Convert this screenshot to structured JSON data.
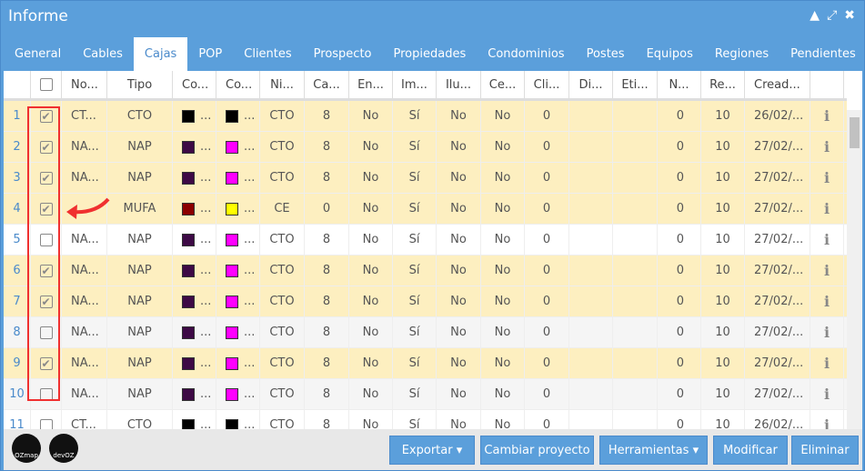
{
  "window": {
    "title": "Informe"
  },
  "tabs": [
    "General",
    "Cables",
    "Cajas",
    "POP",
    "Clientes",
    "Prospecto",
    "Propiedades",
    "Condominios",
    "Postes",
    "Equipos",
    "Regiones",
    "Pendientes"
  ],
  "active_tab": "Cajas",
  "columns": [
    "No...",
    "Tipo",
    "Co...",
    "Co...",
    "Ni...",
    "Ca...",
    "En...",
    "Im...",
    "Ilu...",
    "Ce...",
    "Cli...",
    "Di...",
    "Eti...",
    "N...",
    "Re...",
    "Cread..."
  ],
  "rows": [
    {
      "n": "1",
      "checked": true,
      "name": "CT...",
      "tipo": "CTO",
      "c1": "#000000",
      "c2": "#000000",
      "ni": "CTO",
      "ca": "8",
      "en": "No",
      "im": "Sí",
      "ilu": "No",
      "ce": "No",
      "cli": "0",
      "di": "",
      "eti": "",
      "num": "0",
      "re": "10",
      "cread": "26/02/..."
    },
    {
      "n": "2",
      "checked": true,
      "name": "NA...",
      "tipo": "NAP",
      "c1": "#3d0a45",
      "c2": "#ff00ff",
      "ni": "CTO",
      "ca": "8",
      "en": "No",
      "im": "Sí",
      "ilu": "No",
      "ce": "No",
      "cli": "0",
      "di": "",
      "eti": "",
      "num": "0",
      "re": "10",
      "cread": "27/02/..."
    },
    {
      "n": "3",
      "checked": true,
      "name": "NA...",
      "tipo": "NAP",
      "c1": "#3d0a45",
      "c2": "#ff00ff",
      "ni": "CTO",
      "ca": "8",
      "en": "No",
      "im": "Sí",
      "ilu": "No",
      "ce": "No",
      "cli": "0",
      "di": "",
      "eti": "",
      "num": "0",
      "re": "10",
      "cread": "27/02/..."
    },
    {
      "n": "4",
      "checked": true,
      "name": "",
      "tipo": "MUFA",
      "c1": "#8b0000",
      "c2": "#ffff00",
      "ni": "CE",
      "ca": "0",
      "en": "No",
      "im": "Sí",
      "ilu": "No",
      "ce": "No",
      "cli": "0",
      "di": "",
      "eti": "",
      "num": "0",
      "re": "10",
      "cread": "27/02/..."
    },
    {
      "n": "5",
      "checked": false,
      "name": "NA...",
      "tipo": "NAP",
      "c1": "#3d0a45",
      "c2": "#ff00ff",
      "ni": "CTO",
      "ca": "8",
      "en": "No",
      "im": "Sí",
      "ilu": "No",
      "ce": "No",
      "cli": "0",
      "di": "",
      "eti": "",
      "num": "0",
      "re": "10",
      "cread": "27/02/..."
    },
    {
      "n": "6",
      "checked": true,
      "name": "NA...",
      "tipo": "NAP",
      "c1": "#3d0a45",
      "c2": "#ff00ff",
      "ni": "CTO",
      "ca": "8",
      "en": "No",
      "im": "Sí",
      "ilu": "No",
      "ce": "No",
      "cli": "0",
      "di": "",
      "eti": "",
      "num": "0",
      "re": "10",
      "cread": "27/02/..."
    },
    {
      "n": "7",
      "checked": true,
      "name": "NA...",
      "tipo": "NAP",
      "c1": "#3d0a45",
      "c2": "#ff00ff",
      "ni": "CTO",
      "ca": "8",
      "en": "No",
      "im": "Sí",
      "ilu": "No",
      "ce": "No",
      "cli": "0",
      "di": "",
      "eti": "",
      "num": "0",
      "re": "10",
      "cread": "27/02/..."
    },
    {
      "n": "8",
      "checked": false,
      "name": "NA...",
      "tipo": "NAP",
      "c1": "#3d0a45",
      "c2": "#ff00ff",
      "ni": "CTO",
      "ca": "8",
      "en": "No",
      "im": "Sí",
      "ilu": "No",
      "ce": "No",
      "cli": "0",
      "di": "",
      "eti": "",
      "num": "0",
      "re": "10",
      "cread": "27/02/..."
    },
    {
      "n": "9",
      "checked": true,
      "name": "NA...",
      "tipo": "NAP",
      "c1": "#3d0a45",
      "c2": "#ff00ff",
      "ni": "CTO",
      "ca": "8",
      "en": "No",
      "im": "Sí",
      "ilu": "No",
      "ce": "No",
      "cli": "0",
      "di": "",
      "eti": "",
      "num": "0",
      "re": "10",
      "cread": "27/02/..."
    },
    {
      "n": "10",
      "checked": false,
      "name": "NA...",
      "tipo": "NAP",
      "c1": "#3d0a45",
      "c2": "#ff00ff",
      "ni": "CTO",
      "ca": "8",
      "en": "No",
      "im": "Sí",
      "ilu": "No",
      "ce": "No",
      "cli": "0",
      "di": "",
      "eti": "",
      "num": "0",
      "re": "10",
      "cread": "27/02/..."
    },
    {
      "n": "11",
      "checked": false,
      "name": "CT...",
      "tipo": "CTO",
      "c1": "#000000",
      "c2": "#000000",
      "ni": "CTO",
      "ca": "8",
      "en": "No",
      "im": "Sí",
      "ilu": "No",
      "ce": "No",
      "cli": "0",
      "di": "",
      "eti": "",
      "num": "0",
      "re": "10",
      "cread": "26/02/..."
    }
  ],
  "footer": {
    "logos": [
      "OZmap",
      "devOZ"
    ],
    "export": "Exportar",
    "change_project": "Cambiar proyecto",
    "tools": "Herramientas",
    "modify": "Modificar",
    "delete": "Eliminar"
  },
  "colors": {
    "accent": "#5b9fdb",
    "selected_row": "#fdefc0",
    "annotation": "#f03030"
  }
}
